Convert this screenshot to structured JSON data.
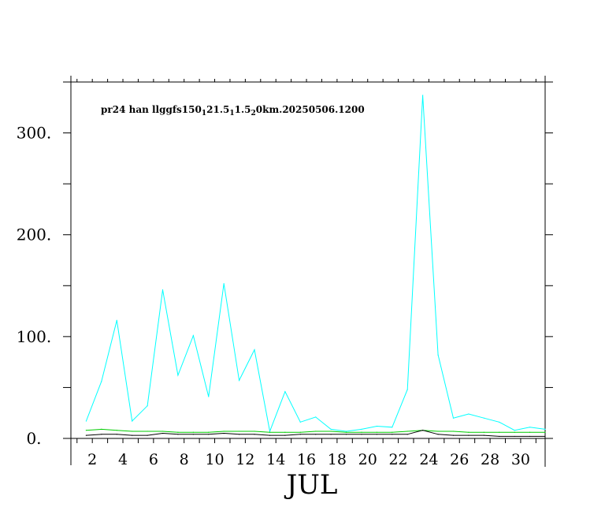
{
  "chart_data": {
    "type": "line",
    "title": "pr24 han lgfs150_1 21.5_1 1.5_2 0km.20250506.1200",
    "title_parts": [
      {
        "text": "pr24 han llggfs150",
        "sub": false
      },
      {
        "text": "1",
        "sub": true
      },
      {
        "text": "21.5",
        "sub": false
      },
      {
        "text": "1",
        "sub": true
      },
      {
        "text": "1.5",
        "sub": false
      },
      {
        "text": "2",
        "sub": true
      },
      {
        "text": "0km.20250506.1200",
        "sub": false
      }
    ],
    "xlabel": "JUL",
    "ylabel": "",
    "xlim": [
      0.6,
      31.6
    ],
    "ylim": [
      0,
      350
    ],
    "x_ticks": [
      2,
      4,
      6,
      8,
      10,
      12,
      14,
      16,
      18,
      20,
      22,
      24,
      26,
      28,
      30
    ],
    "x_tick_labels": [
      "2",
      "4",
      "6",
      "8",
      "10",
      "12",
      "14",
      "16",
      "18",
      "20",
      "22",
      "24",
      "26",
      "28",
      "30"
    ],
    "y_ticks": [
      0,
      100,
      200,
      300
    ],
    "y_tick_labels": [
      "0.",
      "100.",
      "200.",
      "300."
    ],
    "grid": false,
    "x": [
      1.6,
      2.6,
      3.6,
      4.6,
      5.6,
      6.6,
      7.6,
      8.6,
      9.6,
      10.6,
      11.6,
      12.6,
      13.6,
      14.6,
      15.6,
      16.6,
      17.6,
      18.6,
      19.6,
      20.6,
      21.6,
      22.6,
      23.6,
      24.6,
      25.6,
      26.6,
      27.6,
      28.6,
      29.6,
      30.6,
      31.6
    ],
    "series": [
      {
        "color": "#00ffff",
        "values": [
          17,
          56,
          116,
          17,
          32,
          146,
          62,
          101,
          41,
          152,
          57,
          87,
          7,
          46,
          16,
          21,
          9,
          7,
          9,
          12,
          11,
          48,
          337,
          82,
          20,
          24,
          20,
          16,
          8,
          11,
          9
        ]
      },
      {
        "color": "#00cc00",
        "values": [
          8,
          9,
          8,
          7,
          7,
          7,
          6,
          6,
          6,
          7,
          7,
          7,
          6,
          6,
          6,
          7,
          7,
          6,
          6,
          6,
          6,
          7,
          8,
          7,
          7,
          6,
          6,
          6,
          6,
          6,
          6
        ]
      },
      {
        "color": "#000000",
        "values": [
          3,
          4,
          4,
          3,
          3,
          5,
          4,
          4,
          4,
          5,
          4,
          4,
          3,
          3,
          4,
          4,
          4,
          4,
          4,
          4,
          4,
          4,
          8,
          4,
          3,
          3,
          3,
          2,
          2,
          2,
          2
        ]
      }
    ]
  }
}
